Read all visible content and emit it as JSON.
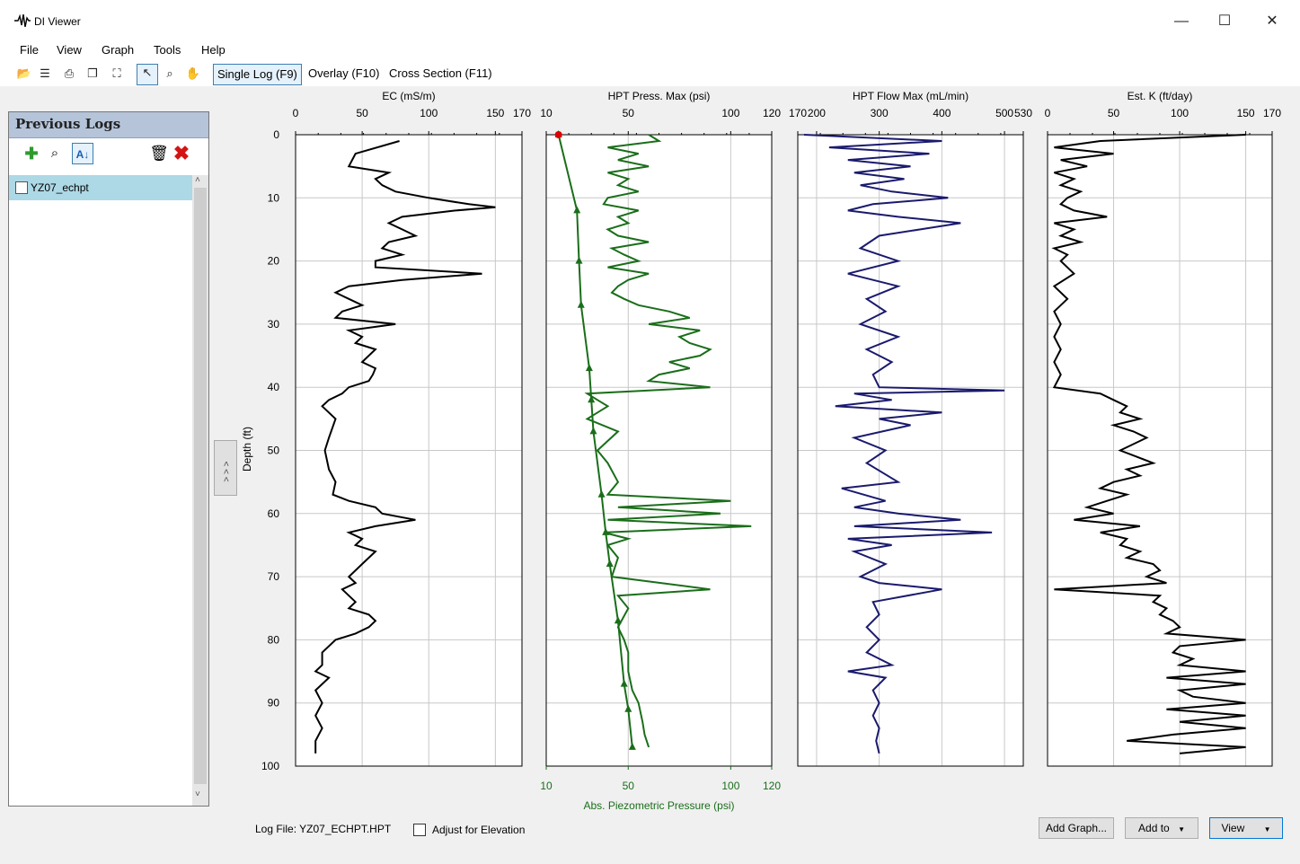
{
  "app": {
    "title": "DI Viewer",
    "minimize_glyph": "—",
    "maximize_glyph": "☐",
    "close_glyph": "✕"
  },
  "menu": [
    "File",
    "View",
    "Graph",
    "Tools",
    "Help"
  ],
  "toolbar": {
    "icons": [
      "open-folder-icon",
      "properties-icon",
      "print-icon",
      "print-preview-icon",
      "zoom-extents-icon",
      "pointer-icon",
      "zoom-icon",
      "pan-hand-icon"
    ],
    "tabs": [
      "Single Log (F9)",
      "Overlay (F10)",
      "Cross Section (F11)"
    ],
    "active_tab": 0
  },
  "previous_logs": {
    "title": "Previous Logs",
    "items": [
      "YZ07_echpt"
    ]
  },
  "collapse_label": "< < <",
  "footer": {
    "log_file": "Log File: YZ07_ECHPT.HPT",
    "adjust_elevation": "Adjust for Elevation",
    "add_graph": "Add Graph...",
    "add_to": "Add to",
    "view": "View"
  },
  "chart_data": {
    "type": "line",
    "depth_axis": {
      "label": "Depth (ft)",
      "range": [
        0,
        100
      ],
      "ticks": [
        0,
        10,
        20,
        30,
        40,
        50,
        60,
        70,
        80,
        90,
        100
      ]
    },
    "colors": {
      "ec": "#000000",
      "hpt_press": "#1a6e1a",
      "hpt_flow": "#1a1a6e",
      "est_k": "#000000",
      "marker": "#e00000"
    },
    "panels": [
      {
        "title": "EC (mS/m)",
        "xlim": [
          0,
          170
        ],
        "ticks": [
          0,
          50,
          100,
          150,
          170
        ],
        "series": [
          {
            "color": "#000000",
            "depth": [
              1,
              3,
              5,
              6,
              7,
              8,
              9,
              10,
              11,
              11.5,
              12,
              13,
              14,
              15,
              16,
              17,
              18,
              19,
              20,
              21,
              22,
              23,
              24,
              25,
              26,
              27,
              28,
              29,
              30,
              31,
              32,
              33,
              34,
              35,
              36,
              37,
              38,
              39,
              40,
              41,
              42,
              43,
              45,
              48,
              50,
              53,
              55,
              57,
              58,
              59,
              60,
              61,
              62,
              63,
              64,
              65,
              66,
              67,
              68,
              69,
              70,
              71,
              72,
              73,
              74,
              75,
              76,
              77,
              78,
              79,
              80,
              82,
              84,
              85,
              86,
              88,
              90,
              92,
              94,
              96,
              98
            ],
            "value": [
              78,
              45,
              40,
              70,
              60,
              65,
              75,
              100,
              130,
              150,
              120,
              80,
              70,
              80,
              90,
              70,
              65,
              80,
              60,
              60,
              140,
              80,
              40,
              30,
              40,
              50,
              35,
              30,
              75,
              40,
              50,
              45,
              60,
              55,
              50,
              60,
              58,
              55,
              40,
              35,
              25,
              20,
              30,
              25,
              22,
              25,
              30,
              28,
              40,
              60,
              65,
              90,
              60,
              40,
              50,
              45,
              60,
              55,
              50,
              45,
              40,
              45,
              35,
              40,
              45,
              40,
              55,
              60,
              55,
              45,
              30,
              20,
              20,
              15,
              25,
              15,
              20,
              15,
              20,
              15,
              15
            ]
          }
        ]
      },
      {
        "title": "HPT Press. Max (psi)",
        "xlim": [
          10,
          120
        ],
        "ticks": [
          10,
          50,
          100,
          120
        ],
        "bottom_label": "Abs. Piezometric Pressure (psi)",
        "bottom_ticks": [
          10,
          50,
          100,
          120
        ],
        "series": [
          {
            "color": "#1a6e1a",
            "depth": [
              0,
              1,
              2,
              3,
              4,
              5,
              6,
              7,
              8,
              9,
              10,
              11,
              12,
              13,
              14,
              15,
              16,
              17,
              18,
              19,
              20,
              21,
              22,
              23,
              24,
              25,
              26,
              27,
              28,
              29,
              30,
              31,
              32,
              33,
              34,
              35,
              36,
              37,
              38,
              39,
              40,
              40.5,
              41,
              42,
              43,
              45,
              47,
              50,
              52,
              55,
              57,
              58,
              59,
              60,
              61,
              62,
              63,
              64,
              65,
              67,
              70,
              72,
              73,
              75,
              78,
              80,
              82,
              85,
              88,
              90,
              93,
              95,
              97
            ],
            "value": [
              60,
              65,
              40,
              55,
              45,
              60,
              40,
              50,
              45,
              55,
              40,
              38,
              55,
              45,
              50,
              40,
              45,
              60,
              42,
              48,
              55,
              40,
              60,
              50,
              45,
              42,
              48,
              55,
              70,
              80,
              60,
              85,
              75,
              80,
              90,
              85,
              70,
              80,
              65,
              60,
              90,
              60,
              30,
              35,
              40,
              30,
              45,
              35,
              40,
              45,
              40,
              100,
              45,
              95,
              40,
              110,
              38,
              50,
              40,
              45,
              42,
              90,
              45,
              50,
              45,
              48,
              50,
              50,
              52,
              55,
              57,
              58,
              60
            ]
          },
          {
            "color": "#1a6e1a",
            "markers": "triangle",
            "depth": [
              0,
              12,
              20,
              27,
              37,
              42,
              47,
              57,
              63,
              68,
              77,
              87,
              91,
              97
            ],
            "value": [
              16,
              25,
              26,
              27,
              31,
              32,
              33,
              37,
              39,
              41,
              45,
              48,
              50,
              52
            ]
          }
        ],
        "marker_point": {
          "depth": 0,
          "value": 16
        }
      },
      {
        "title": "HPT Flow Max (mL/min)",
        "xlim": [
          170,
          530
        ],
        "ticks": [
          170,
          200,
          300,
          400,
          500,
          530
        ],
        "series": [
          {
            "color": "#1a1a6e",
            "depth": [
              0,
              1,
              2,
              3,
              4,
              5,
              6,
              7,
              8,
              9,
              10,
              11,
              12,
              13,
              14,
              16,
              18,
              20,
              22,
              24,
              26,
              28,
              30,
              32,
              34,
              36,
              38,
              40,
              40.5,
              41,
              42,
              43,
              44,
              45,
              46,
              48,
              50,
              52,
              55,
              56,
              58,
              59,
              60,
              61,
              62,
              63,
              64,
              65,
              66,
              68,
              70,
              71,
              72,
              74,
              76,
              78,
              80,
              82,
              84,
              85,
              86,
              88,
              90,
              92,
              94,
              96,
              98
            ],
            "value": [
              180,
              400,
              220,
              380,
              250,
              350,
              260,
              340,
              270,
              320,
              410,
              290,
              250,
              330,
              430,
              300,
              270,
              330,
              250,
              330,
              280,
              310,
              270,
              330,
              280,
              320,
              290,
              300,
              500,
              260,
              320,
              230,
              400,
              300,
              350,
              260,
              310,
              280,
              330,
              240,
              310,
              260,
              330,
              430,
              260,
              480,
              250,
              320,
              260,
              310,
              270,
              300,
              400,
              290,
              300,
              280,
              300,
              280,
              320,
              250,
              310,
              290,
              300,
              290,
              300,
              295,
              300
            ]
          }
        ]
      },
      {
        "title": "Est. K (ft/day)",
        "xlim": [
          0,
          170
        ],
        "ticks": [
          0,
          50,
          100,
          150,
          170
        ],
        "series": [
          {
            "color": "#000000",
            "depth": [
              0,
              1,
              2,
              3,
              4,
              5,
              6,
              7,
              8,
              9,
              10,
              11,
              12,
              13,
              14,
              15,
              16,
              17,
              18,
              19,
              20,
              22,
              24,
              26,
              28,
              30,
              32,
              34,
              36,
              38,
              40,
              41,
              42,
              43,
              44,
              45,
              46,
              47,
              48,
              50,
              52,
              53,
              54,
              55,
              56,
              57,
              58,
              59,
              60,
              61,
              62,
              63,
              64,
              65,
              66,
              67,
              68,
              69,
              70,
              71,
              72,
              73,
              74,
              75,
              76,
              77,
              78,
              79,
              80,
              81,
              82,
              83,
              84,
              85,
              86,
              87,
              88,
              89,
              90,
              91,
              92,
              93,
              94,
              95,
              96,
              97,
              98
            ],
            "value": [
              150,
              40,
              5,
              50,
              10,
              30,
              5,
              20,
              10,
              25,
              15,
              10,
              20,
              45,
              5,
              20,
              10,
              25,
              5,
              15,
              10,
              20,
              5,
              15,
              5,
              10,
              5,
              10,
              5,
              10,
              5,
              40,
              50,
              60,
              55,
              70,
              50,
              65,
              75,
              55,
              80,
              60,
              70,
              50,
              40,
              60,
              45,
              30,
              50,
              20,
              70,
              40,
              60,
              55,
              70,
              60,
              80,
              85,
              75,
              90,
              5,
              85,
              80,
              90,
              85,
              95,
              100,
              90,
              150,
              100,
              95,
              110,
              100,
              150,
              90,
              150,
              100,
              110,
              150,
              90,
              150,
              100,
              150,
              95,
              60,
              150,
              100
            ]
          }
        ]
      }
    ],
    "grid": true
  }
}
